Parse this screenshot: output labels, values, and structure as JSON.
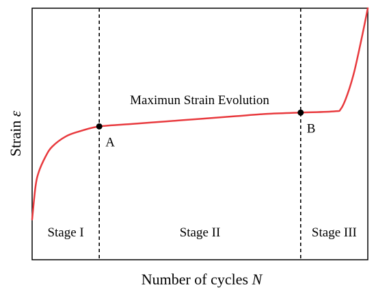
{
  "chart_data": {
    "type": "line",
    "title": "Maximun Strain Evolution",
    "xlabel_main": "Number of cycles",
    "xlabel_var": "N",
    "ylabel_main": "Strain",
    "ylabel_var": "ε",
    "xlim": [
      0,
      100
    ],
    "ylim": [
      0,
      100
    ],
    "grid": false,
    "legend": "none",
    "series": [
      {
        "color": "#e8393d",
        "x": [
          0,
          1,
          2,
          4,
          6,
          10,
          14,
          20,
          30,
          40,
          50,
          60,
          70,
          80,
          90,
          92,
          94,
          96,
          98,
          100
        ],
        "y": [
          16,
          29,
          35,
          41,
          45,
          49,
          51,
          53,
          54,
          55,
          56,
          57,
          58,
          58.5,
          59,
          60,
          66,
          75,
          87,
          100
        ]
      }
    ],
    "points": [
      {
        "label": "A",
        "x": 20,
        "y": 53
      },
      {
        "label": "B",
        "x": 80,
        "y": 58.5
      }
    ],
    "dividers": [
      20,
      80
    ],
    "stages": [
      {
        "label": "Stage I",
        "x": 10
      },
      {
        "label": "Stage II",
        "x": 50
      },
      {
        "label": "Stage III",
        "x": 90
      }
    ]
  }
}
